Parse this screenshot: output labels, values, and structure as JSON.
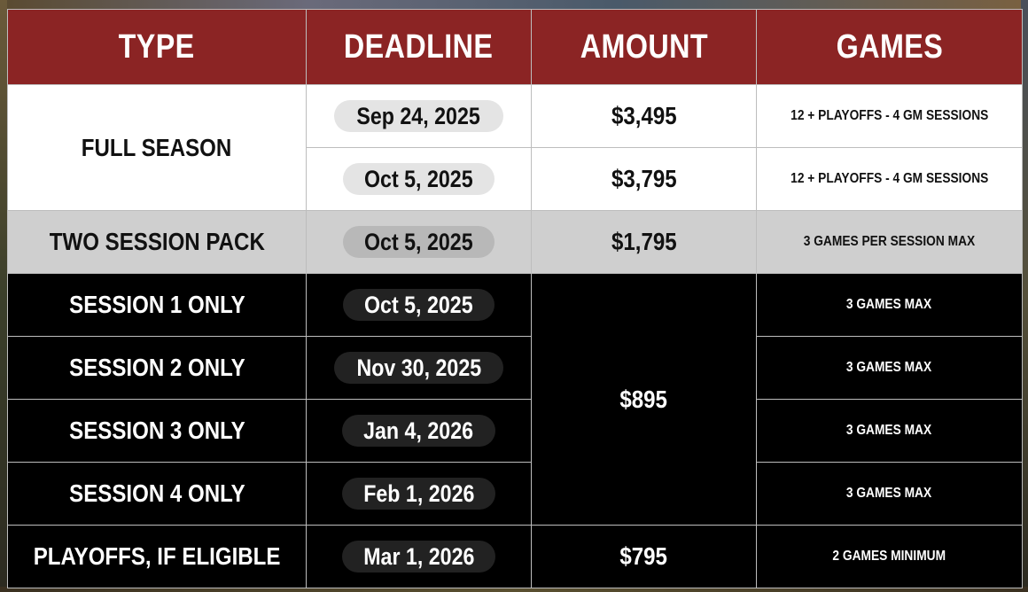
{
  "headers": {
    "type": "TYPE",
    "deadline": "DEADLINE",
    "amount": "AMOUNT",
    "games": "GAMES"
  },
  "rows": {
    "full_season": {
      "type": "FULL SEASON",
      "options": [
        {
          "deadline": "Sep 24, 2025",
          "amount": "$3,495",
          "games": "12 + PLAYOFFS - 4 GM SESSIONS"
        },
        {
          "deadline": "Oct 5, 2025",
          "amount": "$3,795",
          "games": "12 + PLAYOFFS - 4 GM SESSIONS"
        }
      ]
    },
    "two_session": {
      "type": "TWO SESSION PACK",
      "deadline": "Oct 5, 2025",
      "amount": "$1,795",
      "games": "3 GAMES PER SESSION MAX"
    },
    "session_amount": "$895",
    "sessions": [
      {
        "type": "SESSION 1 ONLY",
        "deadline": "Oct 5, 2025",
        "games": "3 GAMES MAX"
      },
      {
        "type": "SESSION 2 ONLY",
        "deadline": "Nov 30, 2025",
        "games": "3 GAMES MAX"
      },
      {
        "type": "SESSION 3 ONLY",
        "deadline": "Jan 4, 2026",
        "games": "3 GAMES MAX"
      },
      {
        "type": "SESSION 4 ONLY",
        "deadline": "Feb 1, 2026",
        "games": "3 GAMES MAX"
      }
    ],
    "playoffs": {
      "type": "PLAYOFFS, IF ELIGIBLE",
      "deadline": "Mar 1, 2026",
      "amount": "$795",
      "games": "2 GAMES MINIMUM"
    }
  },
  "colors": {
    "header_bg": "#8b2424",
    "white_row": "#ffffff",
    "gray_row": "#cfcfcf",
    "black_row": "#000000"
  }
}
